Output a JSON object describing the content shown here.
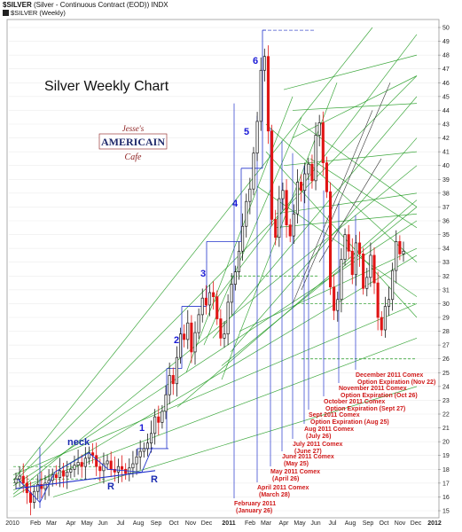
{
  "header": {
    "symbol": "$SILVER",
    "desc": "(Silver - Continuous Contract (EOD))",
    "exchange": "INDX",
    "legend": "$SILVER (Weekly)"
  },
  "logo": {
    "line1": "Jesse's",
    "line2": "AMERICAIN",
    "line3": "Cafe"
  },
  "colors": {
    "up": "#1a1a1a",
    "down": "#e01515",
    "trend": "#1e9a1e",
    "wave": "#1a1ad6",
    "events": "#d01a1a",
    "vline": "#2233cc",
    "axis": "#999999"
  },
  "chart_data": {
    "type": "candlestick",
    "title": "Silver Weekly Chart",
    "ylim": [
      15,
      50
    ],
    "yticks": [
      15,
      16,
      17,
      18,
      19,
      20,
      21,
      22,
      23,
      24,
      25,
      26,
      27,
      28,
      29,
      30,
      31,
      32,
      33,
      34,
      35,
      36,
      37,
      38,
      39,
      40,
      41,
      42,
      43,
      44,
      45,
      46,
      47,
      48,
      49,
      50
    ],
    "xticks": [
      "2010",
      "Feb",
      "Mar",
      "Apr",
      "May",
      "Jun",
      "Jul",
      "Aug",
      "Sep",
      "Oct",
      "Nov",
      "Dec",
      "2011",
      "Feb",
      "Mar",
      "Apr",
      "May",
      "Jun",
      "Jul",
      "Aug",
      "Sep",
      "Oct",
      "Nov",
      "Dec",
      "2012"
    ],
    "x_start": "2010-01-01",
    "close": [
      17.3,
      17.5,
      17.0,
      16.3,
      15.6,
      16.4,
      16.9,
      16.6,
      17.0,
      17.2,
      17.6,
      17.4,
      17.9,
      17.5,
      17.8,
      18.0,
      18.3,
      18.5,
      18.2,
      18.8,
      19.2,
      19.0,
      18.2,
      17.9,
      18.4,
      18.6,
      18.0,
      17.8,
      18.2,
      18.0,
      17.7,
      18.1,
      18.4,
      18.9,
      19.3,
      19.5,
      19.9,
      20.6,
      21.8,
      21.4,
      22.2,
      23.4,
      24.8,
      24.2,
      26.1,
      27.8,
      27.4,
      28.6,
      26.5,
      27.9,
      29.2,
      30.4,
      29.9,
      30.8,
      30.5,
      28.9,
      27.5,
      27.8,
      30.1,
      31.4,
      32.3,
      33.8,
      35.6,
      37.4,
      38.3,
      40.9,
      43.2,
      46.9,
      47.9,
      42.5,
      36.1,
      34.8,
      37.6,
      38.2,
      35.7,
      34.9,
      36.5,
      38.8,
      38.2,
      39.4,
      40.1,
      38.9,
      42.2,
      43.1,
      40.2,
      38.1,
      31.2,
      29.5,
      30.3,
      33.2,
      35.0,
      33.8,
      32.1,
      34.4,
      33.6,
      31.1,
      31.9,
      33.5,
      31.5,
      29.0,
      28.1,
      29.8,
      30.3,
      32.4,
      34.5,
      33.6,
      33.8
    ],
    "events": [
      {
        "label": "February 2011",
        "date": "(January 26)"
      },
      {
        "label": "April 2011 Comex",
        "date": "(March 28)"
      },
      {
        "label": "May 2011 Comex",
        "date": "(April 26)"
      },
      {
        "label": "June 2011 Comex",
        "date": "(May 25)"
      },
      {
        "label": "July 2011 Comex",
        "date": "(June 27)"
      },
      {
        "label": "Aug 2011 Comex",
        "date": "(July 26)"
      },
      {
        "label": "Sept 2011 Comex",
        "date": "Option Expiration (Aug 25)"
      },
      {
        "label": "October 2011 Comex",
        "date": "Option Expiration (Sept 27)"
      },
      {
        "label": "November 2011 Comex",
        "date": "Option Expiration (Oct 26)"
      },
      {
        "label": "December 2011 Comex",
        "date": "Option Expiration (Nov 22)"
      }
    ],
    "waves": [
      "1",
      "2",
      "3",
      "4",
      "5",
      "6"
    ],
    "pattern_labels": [
      "neck",
      "R",
      "R"
    ]
  }
}
